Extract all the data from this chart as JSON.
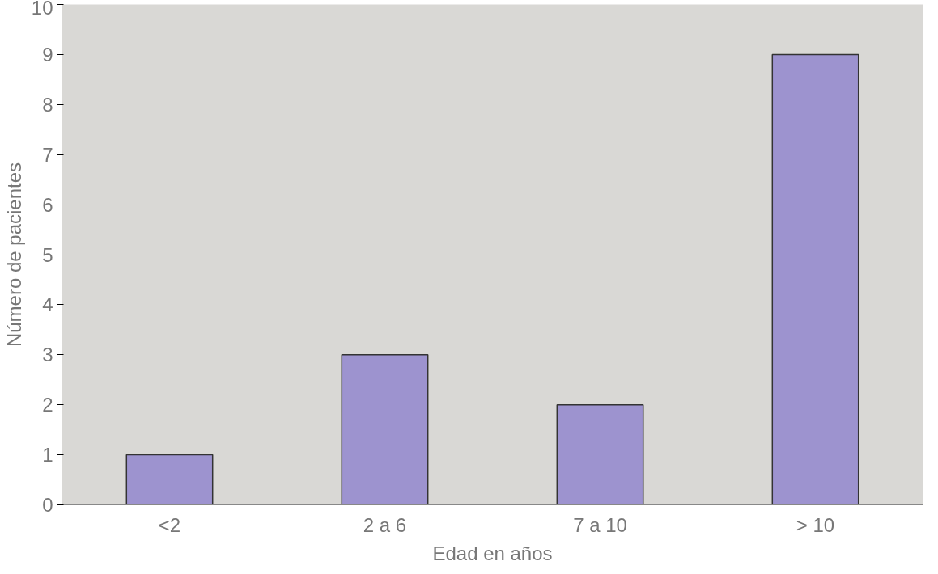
{
  "chart_data": {
    "type": "bar",
    "xlabel": "Edad en años",
    "ylabel": "Número de pacientes",
    "categories": [
      "<2",
      "2 a 6",
      "7 a 10",
      "> 10"
    ],
    "values": [
      1,
      3,
      2,
      9
    ],
    "color": "#9d93cf",
    "ylim": [
      0,
      10
    ],
    "yticks": [
      0,
      1,
      2,
      3,
      4,
      5,
      6,
      7,
      8,
      9,
      10
    ],
    "grid": false
  }
}
